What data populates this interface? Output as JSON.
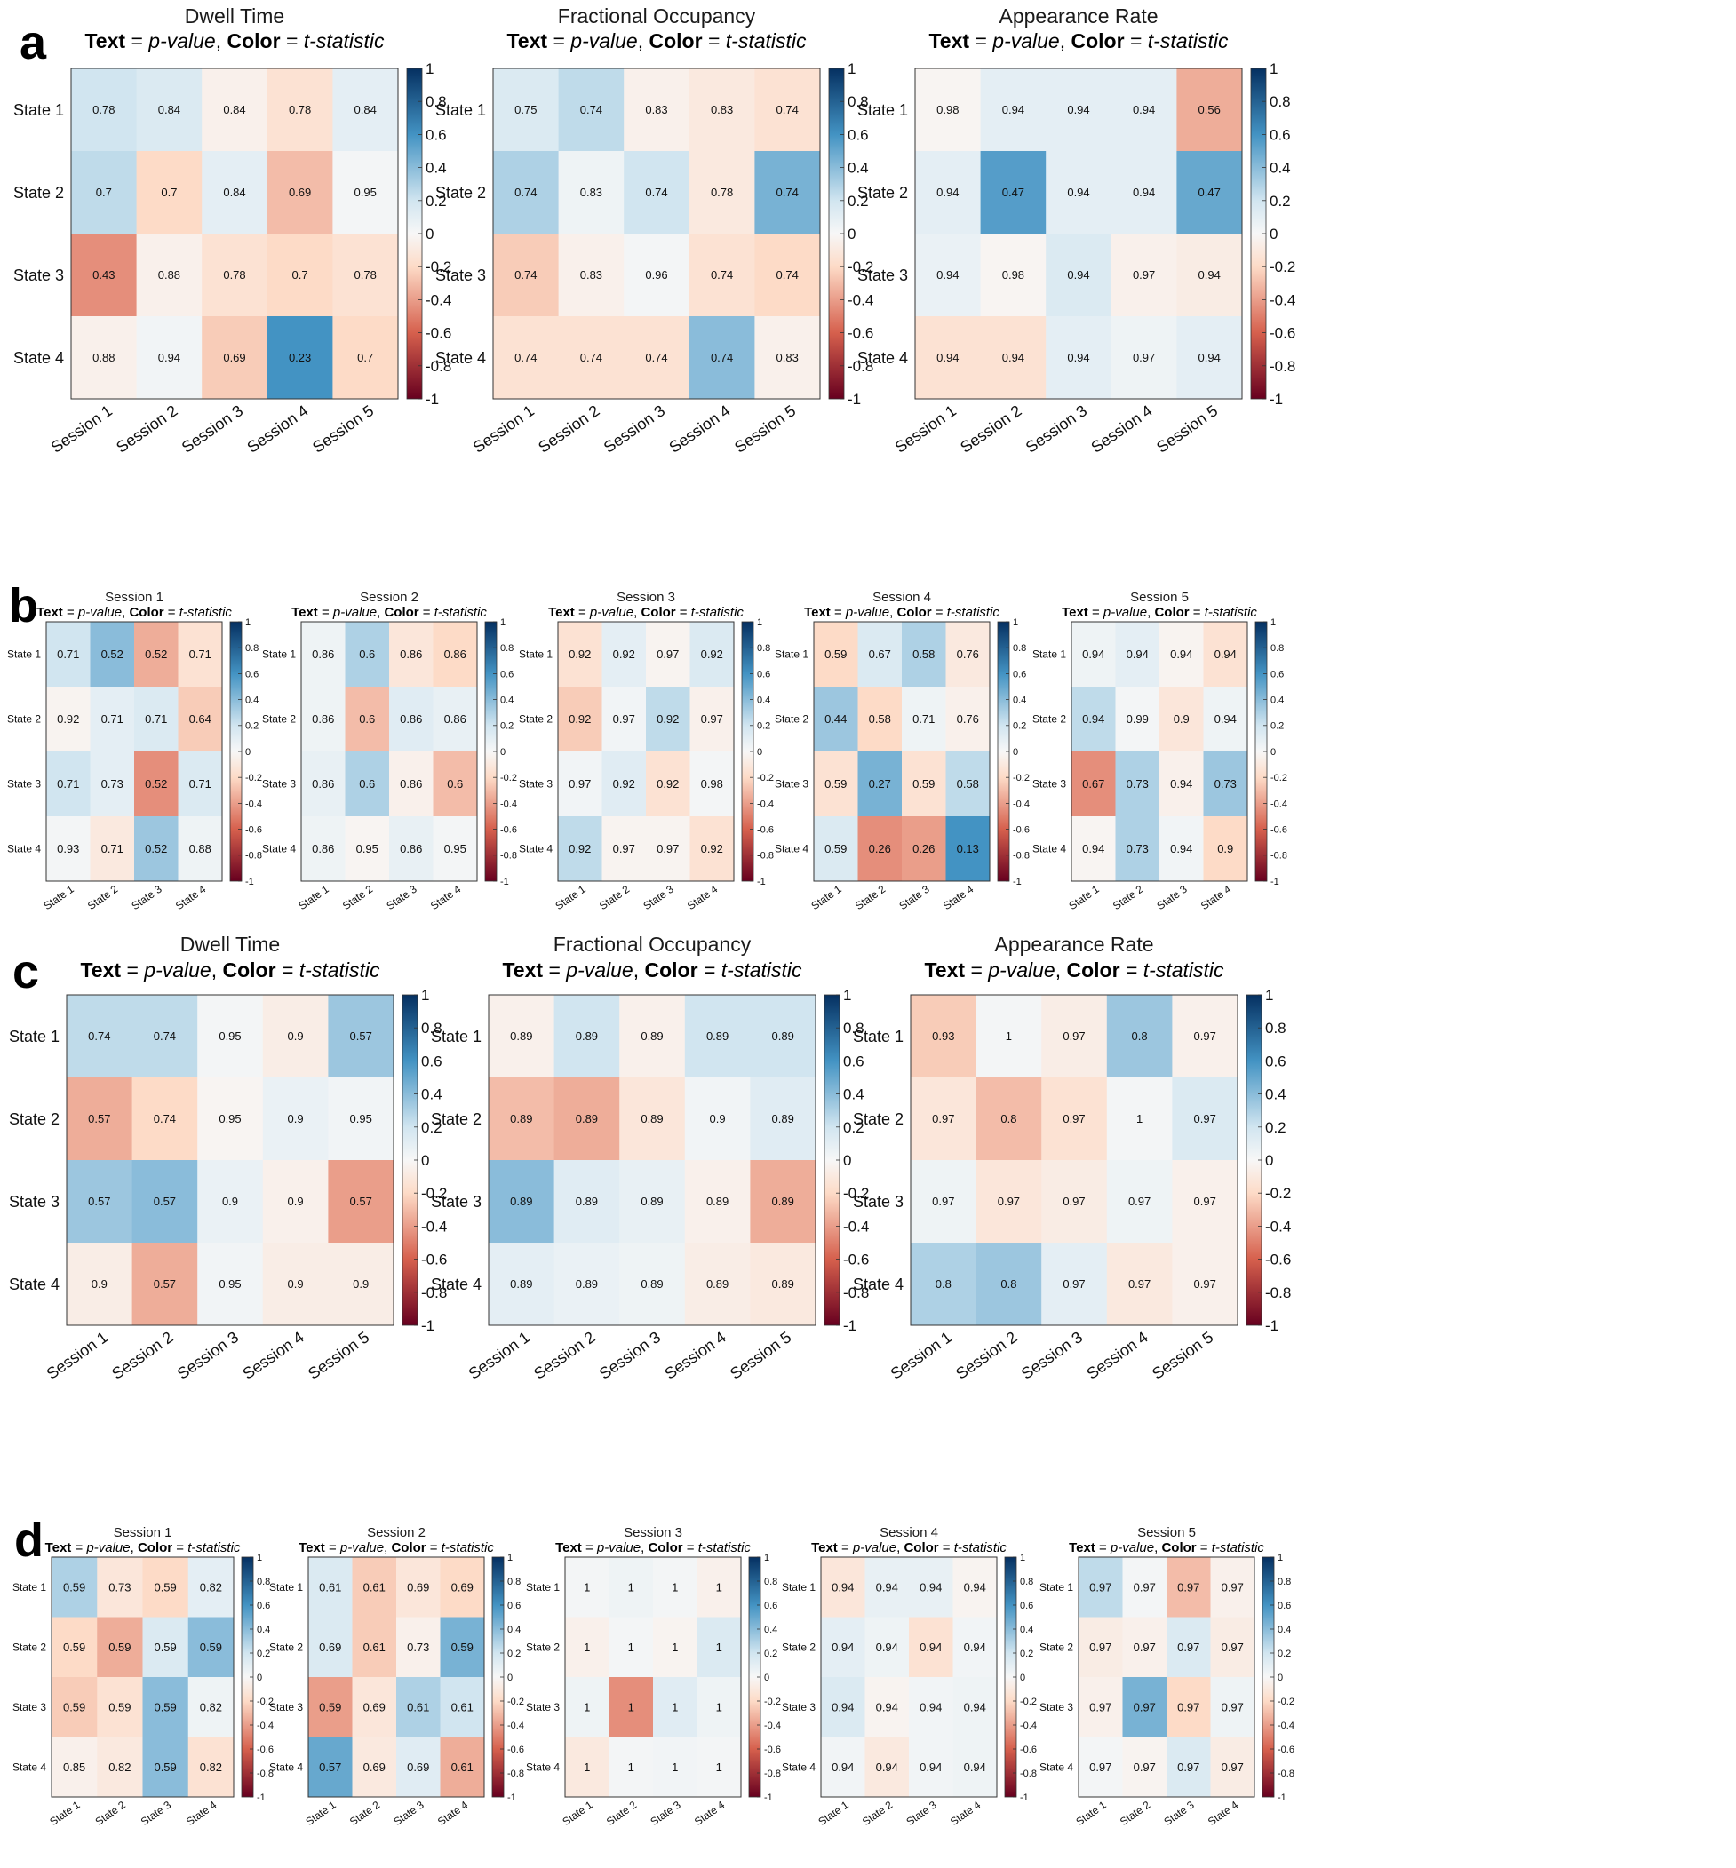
{
  "figure": {
    "panel_letters": [
      "a",
      "b",
      "c",
      "d"
    ],
    "subtitle_parts": {
      "text_word": "Text",
      "eq1": " = ",
      "pvalue": "p-value",
      "comma": ", ",
      "color_word": "Color",
      "eq2": " = ",
      "tstat": "t-statistic"
    },
    "colorbar_ticks": [
      "1",
      "0.8",
      "0.6",
      "0.4",
      "0.2",
      "0",
      "-0.2",
      "-0.4",
      "-0.6",
      "-0.8",
      "-1"
    ],
    "colorscale": {
      "min": -1,
      "max": 1,
      "stops": [
        {
          "v": -1,
          "color": "#67001f"
        },
        {
          "v": -0.6,
          "color": "#d6604d"
        },
        {
          "v": -0.2,
          "color": "#fddbc7"
        },
        {
          "v": 0,
          "color": "#f7f7f7"
        },
        {
          "v": 0.2,
          "color": "#d1e5f0"
        },
        {
          "v": 0.6,
          "color": "#4393c3"
        },
        {
          "v": 1,
          "color": "#053061"
        }
      ]
    }
  },
  "chart_data": [
    {
      "type": "heatmap",
      "panel": "a",
      "title": "Dwell Time",
      "rows": [
        "State 1",
        "State 2",
        "State 3",
        "State 4"
      ],
      "cols": [
        "Session 1",
        "Session 2",
        "Session 3",
        "Session 4",
        "Session 5"
      ],
      "text": [
        [
          "0.78",
          "0.84",
          "0.84",
          "0.78",
          "0.84"
        ],
        [
          "0.7",
          "0.7",
          "0.84",
          "0.69",
          "0.95"
        ],
        [
          "0.43",
          "0.88",
          "0.78",
          "0.7",
          "0.78"
        ],
        [
          "0.88",
          "0.94",
          "0.69",
          "0.23",
          "0.7"
        ]
      ],
      "t": [
        [
          0.2,
          0.15,
          -0.05,
          -0.15,
          0.1
        ],
        [
          0.25,
          -0.2,
          0.1,
          -0.3,
          0.02
        ],
        [
          -0.45,
          -0.05,
          -0.15,
          -0.2,
          -0.15
        ],
        [
          -0.05,
          0.03,
          -0.25,
          0.6,
          -0.2
        ]
      ],
      "clim": [
        -1,
        1
      ]
    },
    {
      "type": "heatmap",
      "panel": "a",
      "title": "Fractional Occupancy",
      "rows": [
        "State 1",
        "State 2",
        "State 3",
        "State 4"
      ],
      "cols": [
        "Session 1",
        "Session 2",
        "Session 3",
        "Session 4",
        "Session 5"
      ],
      "text": [
        [
          "0.75",
          "0.74",
          "0.83",
          "0.83",
          "0.74"
        ],
        [
          "0.74",
          "0.83",
          "0.74",
          "0.78",
          "0.74"
        ],
        [
          "0.74",
          "0.83",
          "0.96",
          "0.74",
          "0.74"
        ],
        [
          "0.74",
          "0.74",
          "0.74",
          "0.74",
          "0.83"
        ]
      ],
      "t": [
        [
          0.15,
          0.25,
          -0.05,
          -0.1,
          -0.15
        ],
        [
          0.3,
          0.05,
          0.2,
          -0.1,
          0.45
        ],
        [
          -0.25,
          -0.05,
          0.02,
          -0.15,
          -0.2
        ],
        [
          -0.15,
          -0.15,
          -0.15,
          0.4,
          -0.05
        ]
      ],
      "clim": [
        -1,
        1
      ]
    },
    {
      "type": "heatmap",
      "panel": "a",
      "title": "Appearance Rate",
      "rows": [
        "State 1",
        "State 2",
        "State 3",
        "State 4"
      ],
      "cols": [
        "Session 1",
        "Session 2",
        "Session 3",
        "Session 4",
        "Session 5"
      ],
      "text": [
        [
          "0.98",
          "0.94",
          "0.94",
          "0.94",
          "0.56"
        ],
        [
          "0.94",
          "0.47",
          "0.94",
          "0.94",
          "0.47"
        ],
        [
          "0.94",
          "0.98",
          "0.94",
          "0.97",
          "0.94"
        ],
        [
          "0.94",
          "0.94",
          "0.94",
          "0.97",
          "0.94"
        ]
      ],
      "t": [
        [
          -0.02,
          0.1,
          0.1,
          0.1,
          -0.35
        ],
        [
          0.1,
          0.55,
          0.1,
          0.1,
          0.5
        ],
        [
          0.07,
          -0.02,
          0.15,
          -0.05,
          -0.08
        ],
        [
          -0.15,
          -0.15,
          0.1,
          0.05,
          0.1
        ]
      ],
      "clim": [
        -1,
        1
      ]
    },
    {
      "type": "heatmap",
      "panel": "b",
      "title": "Session 1",
      "rows": [
        "State 1",
        "State 2",
        "State 3",
        "State 4"
      ],
      "cols": [
        "State 1",
        "State 2",
        "State 3",
        "State 4"
      ],
      "text": [
        [
          "0.71",
          "0.52",
          "0.52",
          "0.71"
        ],
        [
          "0.92",
          "0.71",
          "0.71",
          "0.64"
        ],
        [
          "0.71",
          "0.73",
          "0.52",
          "0.71"
        ],
        [
          "0.93",
          "0.71",
          "0.52",
          "0.88"
        ]
      ],
      "t": [
        [
          0.2,
          0.4,
          -0.35,
          -0.15
        ],
        [
          -0.03,
          0.1,
          0.15,
          -0.25
        ],
        [
          0.2,
          0.1,
          -0.45,
          0.15
        ],
        [
          0.02,
          -0.1,
          0.35,
          0.05
        ]
      ],
      "clim": [
        -1,
        1
      ]
    },
    {
      "type": "heatmap",
      "panel": "b",
      "title": "Session 2",
      "rows": [
        "State 1",
        "State 2",
        "State 3",
        "State 4"
      ],
      "cols": [
        "State 1",
        "State 2",
        "State 3",
        "State 4"
      ],
      "text": [
        [
          "0.86",
          "0.6",
          "0.86",
          "0.86"
        ],
        [
          "0.86",
          "0.6",
          "0.86",
          "0.86"
        ],
        [
          "0.86",
          "0.6",
          "0.86",
          "0.6"
        ],
        [
          "0.86",
          "0.95",
          "0.86",
          "0.95"
        ]
      ],
      "t": [
        [
          0.05,
          0.3,
          -0.12,
          -0.2
        ],
        [
          0.05,
          -0.3,
          0.12,
          0.08
        ],
        [
          0.08,
          0.3,
          -0.05,
          -0.3
        ],
        [
          0.05,
          -0.02,
          0.08,
          0.02
        ]
      ],
      "clim": [
        -1,
        1
      ]
    },
    {
      "type": "heatmap",
      "panel": "b",
      "title": "Session 3",
      "rows": [
        "State 1",
        "State 2",
        "State 3",
        "State 4"
      ],
      "cols": [
        "State 1",
        "State 2",
        "State 3",
        "State 4"
      ],
      "text": [
        [
          "0.92",
          "0.92",
          "0.97",
          "0.92"
        ],
        [
          "0.92",
          "0.97",
          "0.92",
          "0.97"
        ],
        [
          "0.97",
          "0.92",
          "0.92",
          "0.98"
        ],
        [
          "0.92",
          "0.97",
          "0.97",
          "0.92"
        ]
      ],
      "t": [
        [
          -0.15,
          0.1,
          -0.03,
          0.15
        ],
        [
          -0.25,
          0.03,
          0.25,
          -0.05
        ],
        [
          0.03,
          0.12,
          -0.15,
          0.02
        ],
        [
          0.25,
          -0.03,
          -0.03,
          -0.15
        ]
      ],
      "clim": [
        -1,
        1
      ]
    },
    {
      "type": "heatmap",
      "panel": "b",
      "title": "Session 4",
      "rows": [
        "State 1",
        "State 2",
        "State 3",
        "State 4"
      ],
      "cols": [
        "State 1",
        "State 2",
        "State 3",
        "State 4"
      ],
      "text": [
        [
          "0.59",
          "0.67",
          "0.58",
          "0.76"
        ],
        [
          "0.44",
          "0.58",
          "0.71",
          "0.76"
        ],
        [
          "0.59",
          "0.27",
          "0.59",
          "0.58"
        ],
        [
          "0.59",
          "0.26",
          "0.26",
          "0.13"
        ]
      ],
      "t": [
        [
          -0.2,
          0.15,
          0.3,
          -0.1
        ],
        [
          0.35,
          -0.2,
          0.05,
          -0.05
        ],
        [
          -0.15,
          0.45,
          -0.15,
          0.25
        ],
        [
          0.15,
          -0.45,
          -0.4,
          0.6
        ]
      ],
      "clim": [
        -1,
        1
      ]
    },
    {
      "type": "heatmap",
      "panel": "b",
      "title": "Session 5",
      "rows": [
        "State 1",
        "State 2",
        "State 3",
        "State 4"
      ],
      "cols": [
        "State 1",
        "State 2",
        "State 3",
        "State 4"
      ],
      "text": [
        [
          "0.94",
          "0.94",
          "0.94",
          "0.94"
        ],
        [
          "0.94",
          "0.99",
          "0.9",
          "0.94"
        ],
        [
          "0.67",
          "0.73",
          "0.94",
          "0.73"
        ],
        [
          "0.94",
          "0.73",
          "0.94",
          "0.9"
        ]
      ],
      "t": [
        [
          0.05,
          0.1,
          -0.03,
          -0.15
        ],
        [
          0.25,
          0.02,
          -0.12,
          0.05
        ],
        [
          -0.45,
          0.3,
          -0.05,
          0.35
        ],
        [
          -0.02,
          0.3,
          0.03,
          -0.2
        ]
      ],
      "clim": [
        -1,
        1
      ]
    },
    {
      "type": "heatmap",
      "panel": "c",
      "title": "Dwell Time",
      "rows": [
        "State 1",
        "State 2",
        "State 3",
        "State 4"
      ],
      "cols": [
        "Session 1",
        "Session 2",
        "Session 3",
        "Session 4",
        "Session 5"
      ],
      "text": [
        [
          "0.74",
          "0.74",
          "0.95",
          "0.9",
          "0.57"
        ],
        [
          "0.57",
          "0.74",
          "0.95",
          "0.9",
          "0.95"
        ],
        [
          "0.57",
          "0.57",
          "0.9",
          "0.9",
          "0.57"
        ],
        [
          "0.9",
          "0.57",
          "0.95",
          "0.9",
          "0.9"
        ]
      ],
      "t": [
        [
          0.25,
          0.25,
          0.02,
          -0.07,
          0.35
        ],
        [
          -0.35,
          -0.2,
          -0.02,
          0.07,
          0.03
        ],
        [
          0.35,
          0.4,
          0.07,
          -0.05,
          -0.4
        ],
        [
          -0.07,
          -0.35,
          0.03,
          -0.07,
          -0.07
        ]
      ],
      "clim": [
        -1,
        1
      ]
    },
    {
      "type": "heatmap",
      "panel": "c",
      "title": "Fractional Occupancy",
      "rows": [
        "State 1",
        "State 2",
        "State 3",
        "State 4"
      ],
      "cols": [
        "Session 1",
        "Session 2",
        "Session 3",
        "Session 4",
        "Session 5"
      ],
      "text": [
        [
          "0.89",
          "0.89",
          "0.89",
          "0.89",
          "0.89"
        ],
        [
          "0.89",
          "0.89",
          "0.89",
          "0.9",
          "0.89"
        ],
        [
          "0.89",
          "0.89",
          "0.89",
          "0.89",
          "0.89"
        ],
        [
          "0.89",
          "0.89",
          "0.89",
          "0.89",
          "0.89"
        ]
      ],
      "t": [
        [
          -0.05,
          0.2,
          -0.05,
          0.2,
          0.2
        ],
        [
          -0.3,
          -0.35,
          -0.12,
          0.03,
          0.12
        ],
        [
          0.4,
          0.12,
          0.08,
          -0.05,
          -0.35
        ],
        [
          0.1,
          0.07,
          0.05,
          -0.07,
          -0.1
        ]
      ],
      "clim": [
        -1,
        1
      ]
    },
    {
      "type": "heatmap",
      "panel": "c",
      "title": "Appearance Rate",
      "rows": [
        "State 1",
        "State 2",
        "State 3",
        "State 4"
      ],
      "cols": [
        "Session 1",
        "Session 2",
        "Session 3",
        "Session 4",
        "Session 5"
      ],
      "text": [
        [
          "0.93",
          "1",
          "0.97",
          "0.8",
          "0.97"
        ],
        [
          "0.97",
          "0.8",
          "0.97",
          "1",
          "0.97"
        ],
        [
          "0.97",
          "0.97",
          "0.97",
          "0.97",
          "0.97"
        ],
        [
          "0.8",
          "0.8",
          "0.97",
          "0.97",
          "0.97"
        ]
      ],
      "t": [
        [
          -0.25,
          0.02,
          -0.07,
          0.35,
          -0.05
        ],
        [
          -0.12,
          -0.3,
          -0.15,
          0.02,
          0.15
        ],
        [
          0.05,
          -0.12,
          -0.08,
          0.05,
          -0.05
        ],
        [
          0.3,
          0.35,
          0.1,
          -0.1,
          -0.05
        ]
      ],
      "clim": [
        -1,
        1
      ]
    },
    {
      "type": "heatmap",
      "panel": "d",
      "title": "Session 1",
      "rows": [
        "State 1",
        "State 2",
        "State 3",
        "State 4"
      ],
      "cols": [
        "State 1",
        "State 2",
        "State 3",
        "State 4"
      ],
      "text": [
        [
          "0.59",
          "0.73",
          "0.59",
          "0.82"
        ],
        [
          "0.59",
          "0.59",
          "0.59",
          "0.59"
        ],
        [
          "0.59",
          "0.59",
          "0.59",
          "0.82"
        ],
        [
          "0.85",
          "0.82",
          "0.59",
          "0.82"
        ]
      ],
      "t": [
        [
          0.3,
          -0.12,
          -0.2,
          0.1
        ],
        [
          -0.2,
          -0.35,
          0.15,
          0.4
        ],
        [
          -0.25,
          -0.15,
          0.4,
          0.05
        ],
        [
          -0.05,
          -0.1,
          0.4,
          -0.15
        ]
      ],
      "clim": [
        -1,
        1
      ]
    },
    {
      "type": "heatmap",
      "panel": "d",
      "title": "Session 2",
      "rows": [
        "State 1",
        "State 2",
        "State 3",
        "State 4"
      ],
      "cols": [
        "State 1",
        "State 2",
        "State 3",
        "State 4"
      ],
      "text": [
        [
          "0.61",
          "0.61",
          "0.69",
          "0.69"
        ],
        [
          "0.69",
          "0.61",
          "0.73",
          "0.59"
        ],
        [
          "0.59",
          "0.69",
          "0.61",
          "0.61"
        ],
        [
          "0.57",
          "0.69",
          "0.69",
          "0.61"
        ]
      ],
      "t": [
        [
          0.15,
          -0.25,
          -0.12,
          -0.2
        ],
        [
          0.15,
          -0.25,
          -0.05,
          0.45
        ],
        [
          -0.4,
          -0.12,
          0.3,
          0.2
        ],
        [
          0.5,
          -0.1,
          0.12,
          -0.35
        ]
      ],
      "clim": [
        -1,
        1
      ]
    },
    {
      "type": "heatmap",
      "panel": "d",
      "title": "Session 3",
      "rows": [
        "State 1",
        "State 2",
        "State 3",
        "State 4"
      ],
      "cols": [
        "State 1",
        "State 2",
        "State 3",
        "State 4"
      ],
      "text": [
        [
          "1",
          "1",
          "1",
          "1"
        ],
        [
          "1",
          "1",
          "1",
          "1"
        ],
        [
          "1",
          "1",
          "1",
          "1"
        ],
        [
          "1",
          "1",
          "1",
          "1"
        ]
      ],
      "t": [
        [
          0.02,
          0.05,
          0.02,
          -0.05
        ],
        [
          -0.05,
          0.02,
          -0.03,
          0.15
        ],
        [
          0.05,
          -0.45,
          0.12,
          0.05
        ],
        [
          -0.1,
          0.02,
          0.03,
          0.02
        ]
      ],
      "clim": [
        -1,
        1
      ]
    },
    {
      "type": "heatmap",
      "panel": "d",
      "title": "Session 4",
      "rows": [
        "State 1",
        "State 2",
        "State 3",
        "State 4"
      ],
      "cols": [
        "State 1",
        "State 2",
        "State 3",
        "State 4"
      ],
      "text": [
        [
          "0.94",
          "0.94",
          "0.94",
          "0.94"
        ],
        [
          "0.94",
          "0.94",
          "0.94",
          "0.94"
        ],
        [
          "0.94",
          "0.94",
          "0.94",
          "0.94"
        ],
        [
          "0.94",
          "0.94",
          "0.94",
          "0.94"
        ]
      ],
      "t": [
        [
          -0.12,
          0.08,
          0.08,
          -0.03
        ],
        [
          0.1,
          0.05,
          -0.15,
          0.03
        ],
        [
          0.15,
          -0.03,
          0.03,
          0.05
        ],
        [
          0.03,
          -0.1,
          0.03,
          0.05
        ]
      ],
      "clim": [
        -1,
        1
      ]
    },
    {
      "type": "heatmap",
      "panel": "d",
      "title": "Session 5",
      "rows": [
        "State 1",
        "State 2",
        "State 3",
        "State 4"
      ],
      "cols": [
        "State 1",
        "State 2",
        "State 3",
        "State 4"
      ],
      "text": [
        [
          "0.97",
          "0.97",
          "0.97",
          "0.97"
        ],
        [
          "0.97",
          "0.97",
          "0.97",
          "0.97"
        ],
        [
          "0.97",
          "0.97",
          "0.97",
          "0.97"
        ],
        [
          "0.97",
          "0.97",
          "0.97",
          "0.97"
        ]
      ],
      "t": [
        [
          0.25,
          0.02,
          -0.3,
          -0.05
        ],
        [
          -0.08,
          -0.05,
          0.15,
          -0.08
        ],
        [
          -0.05,
          0.45,
          -0.2,
          0.05
        ],
        [
          0.02,
          -0.03,
          0.15,
          -0.08
        ]
      ],
      "clim": [
        -1,
        1
      ]
    }
  ]
}
